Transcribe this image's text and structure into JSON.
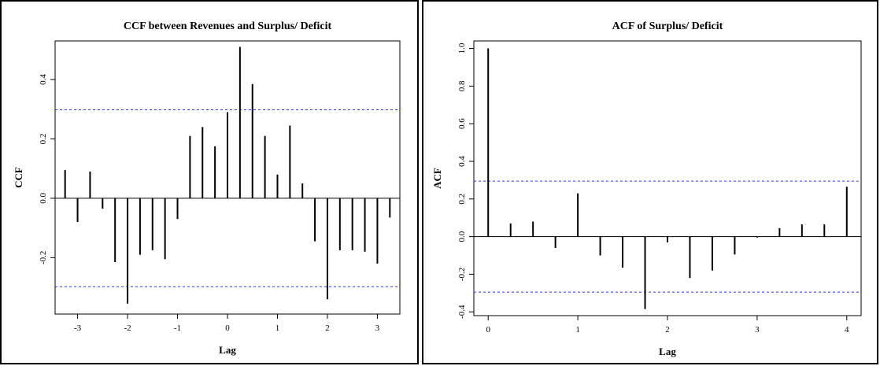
{
  "chart_data": [
    {
      "type": "bar",
      "title": "CCF between Revenues and Surplus/ Deficit",
      "xlabel": "Lag",
      "ylabel": "CCF",
      "x_ticks": [
        "-3",
        "-2",
        "-1",
        "0",
        "1",
        "2",
        "3"
      ],
      "y_ticks": [
        "-0.2",
        "0.0",
        "0.2",
        "0.4"
      ],
      "x_range": [
        -3.45,
        3.45
      ],
      "y_range": [
        -0.39,
        0.53
      ],
      "confidence_bound": 0.298,
      "confidence_color": "#3333ff",
      "lags": [
        -3.25,
        -3.0,
        -2.75,
        -2.5,
        -2.25,
        -2.0,
        -1.75,
        -1.5,
        -1.25,
        -1.0,
        -0.75,
        -0.5,
        -0.25,
        0.0,
        0.25,
        0.5,
        0.75,
        1.0,
        1.25,
        1.5,
        1.75,
        2.0,
        2.25,
        2.5,
        2.75,
        3.0,
        3.25
      ],
      "values": [
        0.095,
        -0.08,
        0.09,
        -0.035,
        -0.215,
        -0.355,
        -0.19,
        -0.175,
        -0.205,
        -0.07,
        0.21,
        0.24,
        0.175,
        0.29,
        0.51,
        0.385,
        0.21,
        0.08,
        0.245,
        0.05,
        -0.145,
        -0.34,
        -0.175,
        -0.175,
        -0.18,
        -0.22,
        -0.065
      ]
    },
    {
      "type": "bar",
      "title": "ACF of Surplus/ Deficit",
      "xlabel": "Lag",
      "ylabel": "ACF",
      "x_ticks": [
        "0",
        "1",
        "2",
        "3",
        "4"
      ],
      "y_ticks": [
        "-0.4",
        "-0.2",
        "0.0",
        "0.2",
        "0.4",
        "0.6",
        "0.8",
        "1.0"
      ],
      "x_range": [
        -0.16,
        4.16
      ],
      "y_range": [
        -0.42,
        1.04
      ],
      "confidence_bound": 0.295,
      "confidence_color": "#3333ff",
      "lags": [
        0,
        0.25,
        0.5,
        0.75,
        1.0,
        1.25,
        1.5,
        1.75,
        2.0,
        2.25,
        2.5,
        2.75,
        3.0,
        3.25,
        3.5,
        3.75,
        4.0
      ],
      "values": [
        1.0,
        0.07,
        0.08,
        -0.06,
        0.23,
        -0.1,
        -0.165,
        -0.385,
        -0.03,
        -0.22,
        -0.18,
        -0.095,
        -0.005,
        0.045,
        0.065,
        0.065,
        0.265
      ]
    }
  ]
}
